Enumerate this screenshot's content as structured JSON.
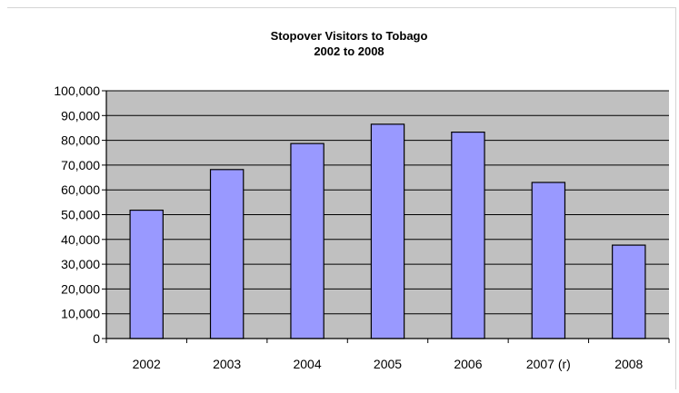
{
  "chart_data": {
    "type": "bar",
    "title": "Stopover Visitors to Tobago",
    "subtitle": "2002 to 2008",
    "categories": [
      "2002",
      "2003",
      "2004",
      "2005",
      "2006",
      "2007 (r)",
      "2008"
    ],
    "values": [
      51800,
      68200,
      78700,
      86500,
      83300,
      63000,
      37700
    ],
    "ylim": [
      0,
      100000
    ],
    "y_ticks": [
      0,
      10000,
      20000,
      30000,
      40000,
      50000,
      60000,
      70000,
      80000,
      90000,
      100000
    ],
    "y_tick_labels": [
      "0",
      "10,000",
      "20,000",
      "30,000",
      "40,000",
      "50,000",
      "60,000",
      "70,000",
      "80,000",
      "90,000",
      "100,000"
    ],
    "xlabel": "",
    "ylabel": "",
    "grid": true,
    "legend": "none",
    "colors": {
      "bar_fill": "#9999ff",
      "bar_stroke": "#000000",
      "plot_background": "#c0c0c0",
      "gridline": "#000000"
    }
  }
}
